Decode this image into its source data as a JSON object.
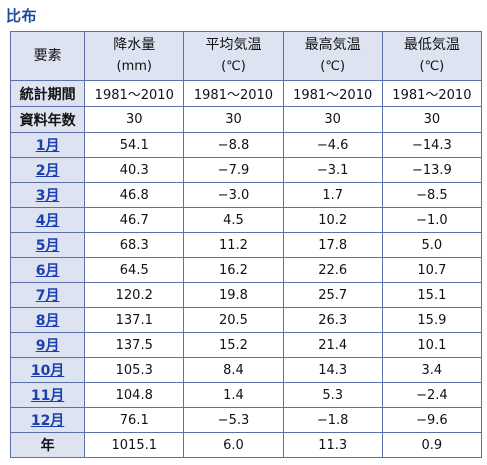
{
  "section_title": "比布",
  "headers": {
    "element": "要素",
    "columns": [
      {
        "label": "降水量",
        "unit": "(mm)"
      },
      {
        "label": "平均気温",
        "unit": "(℃)"
      },
      {
        "label": "最高気温",
        "unit": "(℃)"
      },
      {
        "label": "最低気温",
        "unit": "(℃)"
      }
    ]
  },
  "meta_rows": [
    {
      "label": "統計期間",
      "values": [
        "1981～2010",
        "1981～2010",
        "1981～2010",
        "1981～2010"
      ]
    },
    {
      "label": "資料年数",
      "values": [
        "30",
        "30",
        "30",
        "30"
      ]
    }
  ],
  "months": [
    {
      "label": "1月",
      "values": [
        "54.1",
        "−8.8",
        "−4.6",
        "−14.3"
      ]
    },
    {
      "label": "2月",
      "values": [
        "40.3",
        "−7.9",
        "−3.1",
        "−13.9"
      ]
    },
    {
      "label": "3月",
      "values": [
        "46.8",
        "−3.0",
        "1.7",
        "−8.5"
      ]
    },
    {
      "label": "4月",
      "values": [
        "46.7",
        "4.5",
        "10.2",
        "−1.0"
      ]
    },
    {
      "label": "5月",
      "values": [
        "68.3",
        "11.2",
        "17.8",
        "5.0"
      ]
    },
    {
      "label": "6月",
      "values": [
        "64.5",
        "16.2",
        "22.6",
        "10.7"
      ]
    },
    {
      "label": "7月",
      "values": [
        "120.2",
        "19.8",
        "25.7",
        "15.1"
      ]
    },
    {
      "label": "8月",
      "values": [
        "137.1",
        "20.5",
        "26.3",
        "15.9"
      ]
    },
    {
      "label": "9月",
      "values": [
        "137.5",
        "15.2",
        "21.4",
        "10.1"
      ]
    },
    {
      "label": "10月",
      "values": [
        "105.3",
        "8.4",
        "14.3",
        "3.4"
      ]
    },
    {
      "label": "11月",
      "values": [
        "104.8",
        "1.4",
        "5.3",
        "−2.4"
      ]
    },
    {
      "label": "12月",
      "values": [
        "76.1",
        "−5.3",
        "−1.8",
        "−9.6"
      ]
    }
  ],
  "year_row": {
    "label": "年",
    "values": [
      "1015.1",
      "6.0",
      "11.3",
      "0.9"
    ]
  },
  "colors": {
    "header_bg": "#dde3f1",
    "border": "#5c6fa8",
    "link": "#1b3fb0",
    "title": "#1b4a9c"
  }
}
